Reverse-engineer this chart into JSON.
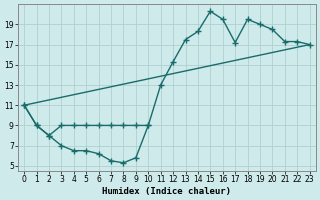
{
  "xlabel": "Humidex (Indice chaleur)",
  "bg_color": "#ceeaea",
  "grid_color": "#b0cfcf",
  "line_color": "#1a6b6b",
  "xlim": [
    -0.5,
    23.5
  ],
  "ylim": [
    4.5,
    21.0
  ],
  "xticks": [
    0,
    1,
    2,
    3,
    4,
    5,
    6,
    7,
    8,
    9,
    10,
    11,
    12,
    13,
    14,
    15,
    16,
    17,
    18,
    19,
    20,
    21,
    22,
    23
  ],
  "yticks": [
    5,
    7,
    9,
    11,
    13,
    15,
    17,
    19
  ],
  "line1_x": [
    0,
    1,
    2,
    3,
    4,
    5,
    6,
    7,
    8,
    9,
    10
  ],
  "line1_y": [
    11,
    9,
    8,
    7,
    6.5,
    6.5,
    6.2,
    5.5,
    5.3,
    5.8,
    9.0
  ],
  "line2_x": [
    0,
    1,
    2,
    3,
    4,
    5,
    6,
    7,
    8,
    9,
    10,
    11,
    12,
    13,
    14,
    15,
    16,
    17,
    18,
    19,
    20,
    21,
    22,
    23
  ],
  "line2_y": [
    11,
    9,
    8,
    9,
    9,
    9,
    9,
    9,
    9,
    9.0,
    9.0,
    13.0,
    15.3,
    17.5,
    18.3,
    20.3,
    19.5,
    17.2,
    19.5,
    19.0,
    18.5,
    17.3,
    17.3,
    17.0
  ],
  "line3_x": [
    0,
    23
  ],
  "line3_y": [
    11,
    17.0
  ],
  "marker": "+",
  "markersize": 4,
  "linewidth": 1.0
}
